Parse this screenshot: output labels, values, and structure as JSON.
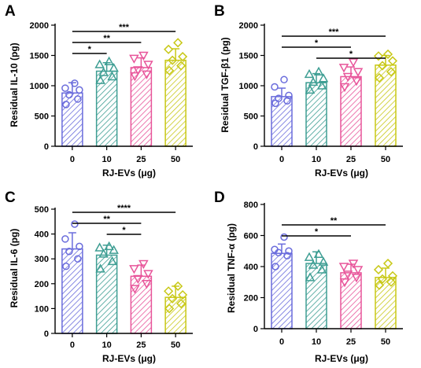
{
  "colors": [
    "#6a6cdc",
    "#3e9e93",
    "#e8559a",
    "#c8c816"
  ],
  "chart_data": [
    {
      "panel": "A",
      "type": "bar",
      "categories": [
        "0",
        "10",
        "25",
        "50"
      ],
      "xlabel": "RJ-EVs (μg)",
      "ylabel": "Residual IL-10 (pg)",
      "ylim": [
        0,
        2000
      ],
      "yticks": [
        "0",
        "500",
        "1000",
        "1500",
        "2000"
      ],
      "values": [
        880,
        1240,
        1300,
        1420
      ],
      "errors": [
        170,
        140,
        160,
        190
      ],
      "points": [
        [
          690,
          780,
          850,
          930,
          960,
          1040
        ],
        [
          1090,
          1150,
          1220,
          1290,
          1350,
          1400
        ],
        [
          1160,
          1190,
          1260,
          1350,
          1450,
          1500
        ],
        [
          1250,
          1330,
          1420,
          1480,
          1600,
          1710
        ]
      ],
      "significance": [
        {
          "from": "0",
          "to": "10",
          "label": "*"
        },
        {
          "from": "0",
          "to": "25",
          "label": "**"
        },
        {
          "from": "0",
          "to": "50",
          "label": "***"
        }
      ]
    },
    {
      "panel": "B",
      "type": "bar",
      "categories": [
        "0",
        "10",
        "25",
        "50"
      ],
      "xlabel": "RJ-EVs (μg)",
      "ylabel": "Residual TGF-β1 (pg)",
      "ylim": [
        0,
        2000
      ],
      "yticks": [
        "0",
        "500",
        "1000",
        "1500",
        "2000"
      ],
      "values": [
        820,
        1050,
        1150,
        1340
      ],
      "errors": [
        140,
        150,
        160,
        160
      ],
      "points": [
        [
          710,
          750,
          790,
          840,
          980,
          1100
        ],
        [
          930,
          1000,
          1060,
          1120,
          1190,
          1230
        ],
        [
          980,
          1080,
          1150,
          1230,
          1300,
          1390
        ],
        [
          1130,
          1230,
          1330,
          1410,
          1490,
          1520
        ]
      ],
      "significance": [
        {
          "from": "0",
          "to": "25",
          "label": "*"
        },
        {
          "from": "10",
          "to": "50",
          "label": "*"
        },
        {
          "from": "0",
          "to": "50",
          "label": "***"
        }
      ]
    },
    {
      "panel": "C",
      "type": "bar",
      "categories": [
        "0",
        "10",
        "25",
        "50"
      ],
      "xlabel": "RJ-EVs (μg)",
      "ylabel": "Residual IL-6 (pg)",
      "ylim": [
        0,
        500
      ],
      "yticks": [
        "0",
        "100",
        "200",
        "300",
        "400",
        "500"
      ],
      "values": [
        340,
        315,
        230,
        145
      ],
      "errors": [
        65,
        40,
        45,
        45
      ],
      "points": [
        [
          270,
          300,
          330,
          350,
          380,
          440
        ],
        [
          260,
          290,
          320,
          335,
          345,
          350
        ],
        [
          180,
          200,
          220,
          240,
          260,
          280
        ],
        [
          100,
          120,
          140,
          155,
          170,
          190
        ]
      ],
      "significance": [
        {
          "from": "10",
          "to": "25",
          "label": "*"
        },
        {
          "from": "0",
          "to": "25",
          "label": "**"
        },
        {
          "from": "0",
          "to": "50",
          "label": "****"
        }
      ]
    },
    {
      "panel": "D",
      "type": "bar",
      "categories": [
        "0",
        "10",
        "25",
        "50"
      ],
      "xlabel": "RJ-EVs (μg)",
      "ylabel": "Residual TNF-α (pg)",
      "ylim": [
        0,
        800
      ],
      "yticks": [
        "0",
        "200",
        "400",
        "600",
        "800"
      ],
      "values": [
        485,
        420,
        360,
        330
      ],
      "errors": [
        60,
        75,
        55,
        60
      ],
      "points": [
        [
          400,
          470,
          490,
          500,
          510,
          590
        ],
        [
          330,
          380,
          410,
          430,
          460,
          480
        ],
        [
          300,
          330,
          350,
          380,
          400,
          420
        ],
        [
          280,
          300,
          320,
          340,
          380,
          420
        ]
      ],
      "significance": [
        {
          "from": "0",
          "to": "25",
          "label": "*"
        },
        {
          "from": "0",
          "to": "50",
          "label": "**"
        }
      ]
    }
  ]
}
